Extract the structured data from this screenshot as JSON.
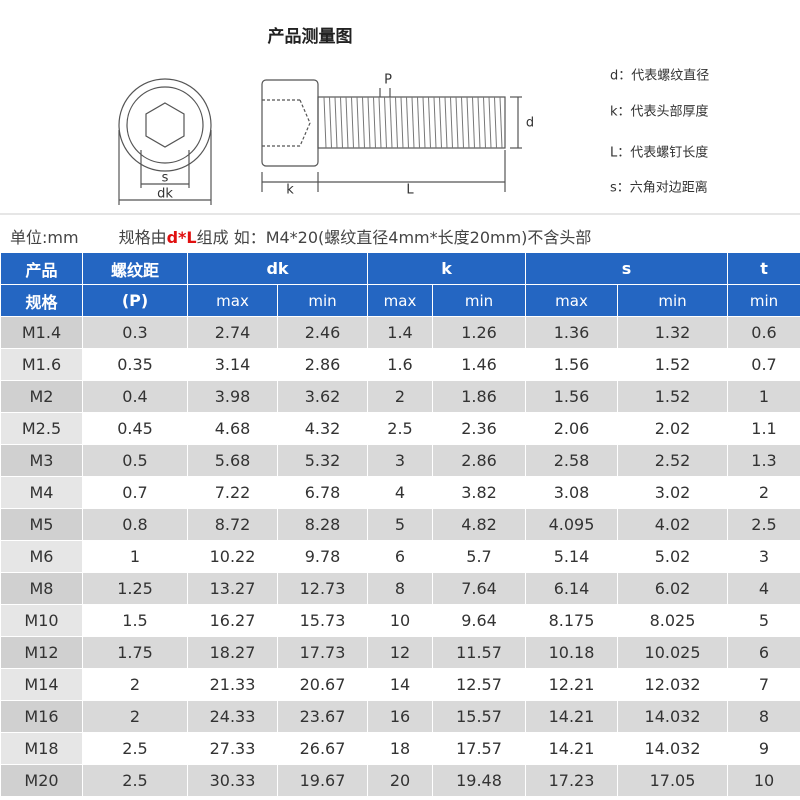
{
  "header": {
    "title": "产品测量图"
  },
  "diagram": {
    "labels": {
      "s": "s",
      "dk": "dk",
      "k": "k",
      "L": "L",
      "P": "P",
      "d": "d"
    },
    "legend": [
      "d：代表螺纹直径",
      "k：代表头部厚度",
      "L：代表螺钉长度",
      "s：六角对边距离"
    ]
  },
  "note": {
    "unit": "单位:mm",
    "spec_prefix": "规格由",
    "spec_highlight": "d*L",
    "spec_suffix": "组成 如：M4*20(螺纹直径4mm*长度20mm)不含头部"
  },
  "table": {
    "header_top": [
      [
        "产品",
        "规格"
      ],
      [
        "螺纹距",
        "(P)"
      ],
      "dk",
      "k",
      "s",
      "t"
    ],
    "header_sub": [
      "max",
      "min",
      "max",
      "min",
      "max",
      "min",
      "min"
    ],
    "rows": [
      [
        "M1.4",
        "0.3",
        "2.74",
        "2.46",
        "1.4",
        "1.26",
        "1.36",
        "1.32",
        "0.6"
      ],
      [
        "M1.6",
        "0.35",
        "3.14",
        "2.86",
        "1.6",
        "1.46",
        "1.56",
        "1.52",
        "0.7"
      ],
      [
        "M2",
        "0.4",
        "3.98",
        "3.62",
        "2",
        "1.86",
        "1.56",
        "1.52",
        "1"
      ],
      [
        "M2.5",
        "0.45",
        "4.68",
        "4.32",
        "2.5",
        "2.36",
        "2.06",
        "2.02",
        "1.1"
      ],
      [
        "M3",
        "0.5",
        "5.68",
        "5.32",
        "3",
        "2.86",
        "2.58",
        "2.52",
        "1.3"
      ],
      [
        "M4",
        "0.7",
        "7.22",
        "6.78",
        "4",
        "3.82",
        "3.08",
        "3.02",
        "2"
      ],
      [
        "M5",
        "0.8",
        "8.72",
        "8.28",
        "5",
        "4.82",
        "4.095",
        "4.02",
        "2.5"
      ],
      [
        "M6",
        "1",
        "10.22",
        "9.78",
        "6",
        "5.7",
        "5.14",
        "5.02",
        "3"
      ],
      [
        "M8",
        "1.25",
        "13.27",
        "12.73",
        "8",
        "7.64",
        "6.14",
        "6.02",
        "4"
      ],
      [
        "M10",
        "1.5",
        "16.27",
        "15.73",
        "10",
        "9.64",
        "8.175",
        "8.025",
        "5"
      ],
      [
        "M12",
        "1.75",
        "18.27",
        "17.73",
        "12",
        "11.57",
        "10.18",
        "10.025",
        "6"
      ],
      [
        "M14",
        "2",
        "21.33",
        "20.67",
        "14",
        "12.57",
        "12.21",
        "12.032",
        "7"
      ],
      [
        "M16",
        "2",
        "24.33",
        "23.67",
        "16",
        "15.57",
        "14.21",
        "14.032",
        "8"
      ],
      [
        "M18",
        "2.5",
        "27.33",
        "26.67",
        "18",
        "17.57",
        "14.21",
        "14.032",
        "9"
      ],
      [
        "M20",
        "2.5",
        "30.33",
        "19.67",
        "20",
        "19.48",
        "17.23",
        "17.05",
        "10"
      ]
    ]
  }
}
